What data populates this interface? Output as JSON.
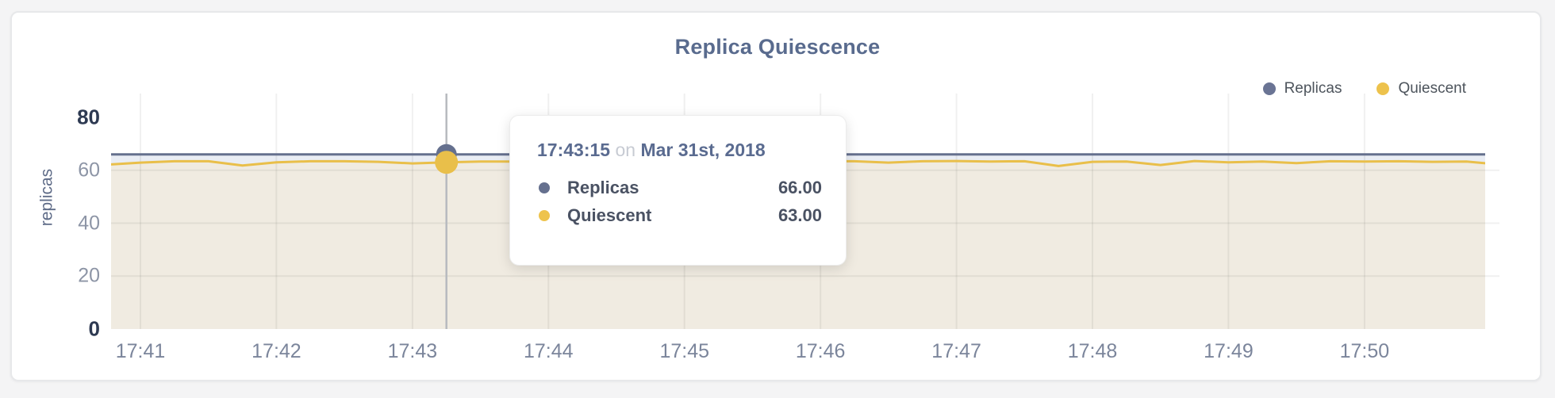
{
  "page": {
    "bg": "#f4f4f5",
    "card_bg": "#ffffff",
    "card_border": "#e7e8ea"
  },
  "chart_data": {
    "type": "line",
    "title": "Replica Quiescence",
    "xlabel": "",
    "ylabel": "replicas",
    "ylim": [
      0,
      80
    ],
    "yticks": [
      0,
      20,
      40,
      60,
      80
    ],
    "yticks_emphasized": [
      0,
      80
    ],
    "grid_y": [
      20,
      40,
      60
    ],
    "grid": true,
    "legend_position": "top-right",
    "xticks": [
      "17:41",
      "17:42",
      "17:43",
      "17:44",
      "17:45",
      "17:46",
      "17:47",
      "17:48",
      "17:49",
      "17:50"
    ],
    "x_unit": "seconds after 17:41:00, one point per 15s",
    "x": [
      -30,
      -15,
      0,
      15,
      30,
      45,
      60,
      75,
      90,
      105,
      120,
      135,
      150,
      165,
      180,
      195,
      210,
      225,
      240,
      255,
      270,
      285,
      300,
      315,
      330,
      345,
      360,
      375,
      390,
      405,
      420,
      435,
      450,
      465,
      480,
      495,
      510,
      525,
      540,
      555,
      570,
      585,
      600
    ],
    "series": [
      {
        "name": "Replicas",
        "color": "#65708e",
        "fill": "#e9edf4",
        "values": [
          66,
          66,
          66,
          66,
          66,
          66,
          66,
          66,
          66,
          66,
          66,
          66,
          66,
          66,
          66,
          66,
          66,
          66,
          66,
          66,
          66,
          66,
          66,
          66,
          66,
          66,
          66,
          66,
          66,
          66,
          66,
          66,
          66,
          66,
          66,
          66,
          66,
          66,
          66,
          66,
          66,
          66,
          66
        ]
      },
      {
        "name": "Quiescent",
        "color": "#e9bf4a",
        "fill": "#f0ebe1",
        "values": [
          61.7,
          62.1,
          62.9,
          63.4,
          63.4,
          61.8,
          63.0,
          63.4,
          63.4,
          63.2,
          62.6,
          63.0,
          63.3,
          63.3,
          63.4,
          63.3,
          63.4,
          63.2,
          63.4,
          63.3,
          63.4,
          63.2,
          63.4,
          63.4,
          62.9,
          63.4,
          63.5,
          63.3,
          63.4,
          61.6,
          63.2,
          63.3,
          62.0,
          63.5,
          63.0,
          63.3,
          62.7,
          63.4,
          63.3,
          63.4,
          63.2,
          63.3,
          62.1
        ]
      }
    ]
  },
  "legend": [
    {
      "label": "Replicas",
      "color": "#6a7494"
    },
    {
      "label": "Quiescent",
      "color": "#edc24c"
    }
  ],
  "tooltip": {
    "time": "17:43:15",
    "on_word": "on",
    "date": "Mar 31st, 2018",
    "rows": [
      {
        "label": "Replicas",
        "value": "66.00",
        "color": "#65708e"
      },
      {
        "label": "Quiescent",
        "value": "63.00",
        "color": "#eec34c"
      }
    ]
  },
  "hover": {
    "x_seconds": 135,
    "index": 11
  }
}
